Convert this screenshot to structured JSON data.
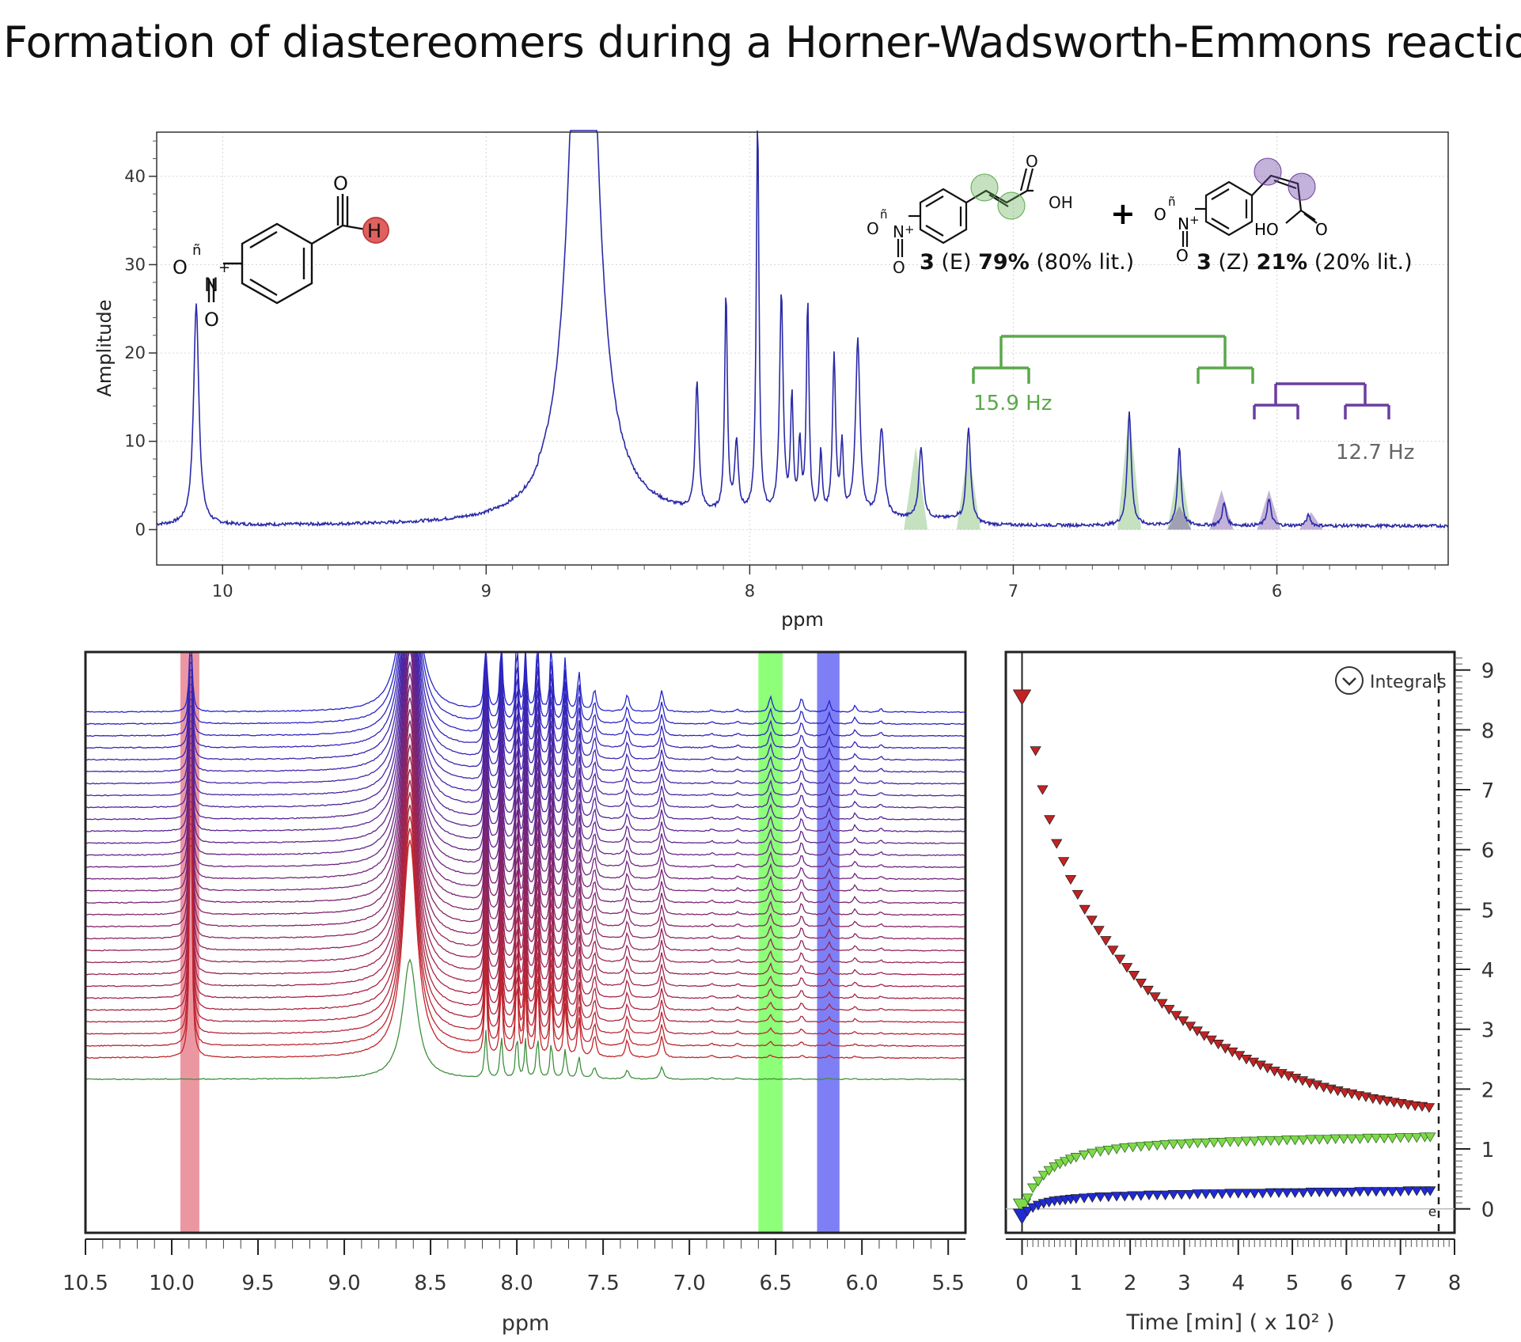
{
  "title": "Formation of diastereomers during a Horner-Wadsworth-Emmons reaction",
  "colors": {
    "spectrum_line": "#2a2aa8",
    "e_isomer": "#5aa84a",
    "z_isomer": "#6a3ea0",
    "aldehyde": "#e06060",
    "stack_top": "#2525c8",
    "stack_bottom": "#c82525",
    "stack_last": "#3f8f3f",
    "band_red": "#e06070",
    "band_green": "#50ff30",
    "band_blue": "#3a3af0",
    "kin_red": "#c42222",
    "kin_green": "#7fd84a",
    "kin_blue": "#1f2ad8"
  },
  "chart_data": [
    {
      "type": "line",
      "id": "top-spectrum",
      "xlabel": "ppm",
      "ylabel": "Amplitude",
      "x_reversed": true,
      "xlim": [
        10.25,
        5.35
      ],
      "ylim": [
        -4,
        45
      ],
      "xticks": [
        "10",
        "9",
        "8",
        "7",
        "6"
      ],
      "yticks": [
        "0",
        "10",
        "20",
        "30",
        "40"
      ],
      "grid": true,
      "baseline": 0.4,
      "peaks": [
        {
          "x": 10.1,
          "y": 25.0,
          "w": 0.012,
          "label": "aldehyde-H"
        },
        {
          "x": 8.63,
          "y": 92.0,
          "w": 0.05
        },
        {
          "x": 8.2,
          "y": 14.5,
          "w": 0.008
        },
        {
          "x": 8.09,
          "y": 25.0,
          "w": 0.006
        },
        {
          "x": 8.05,
          "y": 8.0,
          "w": 0.008
        },
        {
          "x": 7.97,
          "y": 45.0,
          "w": 0.006
        },
        {
          "x": 7.88,
          "y": 25.0,
          "w": 0.008
        },
        {
          "x": 7.84,
          "y": 13.0,
          "w": 0.006
        },
        {
          "x": 7.81,
          "y": 8.0,
          "w": 0.006
        },
        {
          "x": 7.78,
          "y": 24.0,
          "w": 0.006
        },
        {
          "x": 7.73,
          "y": 7.0,
          "w": 0.006
        },
        {
          "x": 7.68,
          "y": 18.0,
          "w": 0.007
        },
        {
          "x": 7.65,
          "y": 8.0,
          "w": 0.006
        },
        {
          "x": 7.59,
          "y": 20.0,
          "w": 0.01
        },
        {
          "x": 7.5,
          "y": 10.0,
          "w": 0.012
        },
        {
          "x": 7.35,
          "y": 8.0,
          "w": 0.01
        },
        {
          "x": 7.17,
          "y": 11.0,
          "w": 0.01
        },
        {
          "x": 6.56,
          "y": 13.0,
          "w": 0.009
        },
        {
          "x": 6.37,
          "y": 9.0,
          "w": 0.008
        },
        {
          "x": 6.2,
          "y": 2.5,
          "w": 0.009
        },
        {
          "x": 6.03,
          "y": 3.0,
          "w": 0.009
        },
        {
          "x": 5.88,
          "y": 1.2,
          "w": 0.009
        }
      ],
      "highlight_e": [
        7.37,
        7.17,
        6.56,
        6.37
      ],
      "highlight_z": [
        6.37,
        6.21,
        6.03,
        5.87
      ],
      "annotations": {
        "coupling_e": "15.9 Hz",
        "coupling_z": "12.7 Hz",
        "e_label": {
          "num": "3",
          "iso": "(E)",
          "pct": "79%",
          "lit": "(80% lit.)"
        },
        "z_label": {
          "num": "3",
          "iso": "(Z)",
          "pct": "21%",
          "lit": "(20% lit.)"
        },
        "plus": "+"
      }
    },
    {
      "type": "line",
      "id": "stacked-spectra",
      "xlabel": "ppm",
      "x_reversed": true,
      "xlim": [
        10.5,
        5.4
      ],
      "xticks": [
        "10.5",
        "10.0",
        "9.5",
        "9.0",
        "8.5",
        "8.0",
        "7.5",
        "7.0",
        "6.5",
        "6.0",
        "5.5"
      ],
      "n_traces": 31,
      "highlight_bands": [
        {
          "from": 9.95,
          "to": 9.84,
          "color": "red"
        },
        {
          "from": 6.6,
          "to": 6.46,
          "color": "green"
        },
        {
          "from": 6.26,
          "to": 6.13,
          "color": "blue"
        }
      ]
    },
    {
      "type": "scatter",
      "id": "integral-kinetics",
      "title": "Integrals",
      "xlabel": "Time [min] ( x 10² )",
      "xlim": [
        -0.3,
        8.0
      ],
      "ylim": [
        -0.4,
        9.3
      ],
      "xticks": [
        "0",
        "1",
        "2",
        "3",
        "4",
        "5",
        "6",
        "7",
        "8"
      ],
      "yticks": [
        "0",
        "1",
        "2",
        "3",
        "4",
        "5",
        "6",
        "7",
        "8",
        "9"
      ],
      "cursor_label": "e",
      "marker": "triangle-down",
      "series": [
        {
          "color": "red",
          "x": [
            0.0,
            0.25,
            0.38,
            0.51,
            0.64,
            0.77,
            0.9,
            1.03,
            1.16,
            1.29,
            1.42,
            1.55,
            1.68,
            1.81,
            1.94,
            2.07,
            2.2,
            2.33,
            2.46,
            2.59,
            2.72,
            2.85,
            2.98,
            3.11,
            3.24,
            3.37,
            3.5,
            3.63,
            3.76,
            3.89,
            4.02,
            4.15,
            4.28,
            4.41,
            4.54,
            4.67,
            4.8,
            4.93,
            5.06,
            5.19,
            5.32,
            5.45,
            5.58,
            5.71,
            5.84,
            5.97,
            6.1,
            6.23,
            6.36,
            6.49,
            6.62,
            6.75,
            6.88,
            7.01,
            7.14,
            7.27,
            7.4,
            7.53
          ],
          "y": [
            8.55,
            7.65,
            7.0,
            6.5,
            6.1,
            5.8,
            5.5,
            5.25,
            5.0,
            4.82,
            4.65,
            4.48,
            4.32,
            4.17,
            4.03,
            3.9,
            3.77,
            3.65,
            3.54,
            3.43,
            3.33,
            3.23,
            3.14,
            3.05,
            2.97,
            2.89,
            2.82,
            2.75,
            2.68,
            2.62,
            2.56,
            2.5,
            2.45,
            2.4,
            2.35,
            2.3,
            2.26,
            2.22,
            2.18,
            2.14,
            2.1,
            2.07,
            2.03,
            2.0,
            1.97,
            1.94,
            1.92,
            1.89,
            1.87,
            1.84,
            1.82,
            1.8,
            1.78,
            1.76,
            1.74,
            1.72,
            1.71,
            1.69
          ]
        },
        {
          "color": "green",
          "x": [
            0.0,
            0.1,
            0.2,
            0.3,
            0.4,
            0.5,
            0.6,
            0.7,
            0.8,
            0.9,
            1.0,
            1.15,
            1.3,
            1.45,
            1.6,
            1.75,
            1.9,
            2.05,
            2.2,
            2.35,
            2.5,
            2.65,
            2.8,
            2.95,
            3.1,
            3.25,
            3.4,
            3.55,
            3.7,
            3.85,
            4.0,
            4.15,
            4.3,
            4.45,
            4.6,
            4.75,
            4.9,
            5.05,
            5.2,
            5.35,
            5.5,
            5.65,
            5.8,
            5.95,
            6.1,
            6.25,
            6.4,
            6.55,
            6.7,
            6.85,
            7.0,
            7.15,
            7.3,
            7.45,
            7.55
          ],
          "y": [
            0.05,
            0.18,
            0.35,
            0.46,
            0.56,
            0.64,
            0.7,
            0.75,
            0.79,
            0.83,
            0.86,
            0.9,
            0.93,
            0.96,
            0.98,
            1.0,
            1.02,
            1.03,
            1.04,
            1.05,
            1.06,
            1.07,
            1.08,
            1.08,
            1.09,
            1.1,
            1.1,
            1.11,
            1.11,
            1.12,
            1.12,
            1.13,
            1.13,
            1.14,
            1.14,
            1.14,
            1.15,
            1.15,
            1.15,
            1.16,
            1.16,
            1.16,
            1.17,
            1.17,
            1.17,
            1.17,
            1.18,
            1.18,
            1.18,
            1.18,
            1.19,
            1.19,
            1.19,
            1.2,
            1.2
          ]
        },
        {
          "color": "blue",
          "x": [
            0.0,
            0.1,
            0.2,
            0.3,
            0.4,
            0.5,
            0.6,
            0.7,
            0.8,
            0.9,
            1.0,
            1.15,
            1.3,
            1.45,
            1.6,
            1.75,
            1.9,
            2.05,
            2.2,
            2.35,
            2.5,
            2.65,
            2.8,
            2.95,
            3.1,
            3.25,
            3.4,
            3.55,
            3.7,
            3.85,
            4.0,
            4.15,
            4.3,
            4.45,
            4.6,
            4.75,
            4.9,
            5.05,
            5.2,
            5.35,
            5.5,
            5.65,
            5.8,
            5.95,
            6.1,
            6.25,
            6.4,
            6.55,
            6.7,
            6.85,
            7.0,
            7.15,
            7.3,
            7.45,
            7.55
          ],
          "y": [
            -0.12,
            -0.04,
            0.02,
            0.06,
            0.09,
            0.11,
            0.13,
            0.14,
            0.15,
            0.16,
            0.17,
            0.18,
            0.19,
            0.2,
            0.2,
            0.21,
            0.21,
            0.22,
            0.22,
            0.23,
            0.23,
            0.23,
            0.24,
            0.24,
            0.24,
            0.25,
            0.25,
            0.25,
            0.25,
            0.26,
            0.26,
            0.26,
            0.26,
            0.26,
            0.27,
            0.27,
            0.27,
            0.27,
            0.27,
            0.28,
            0.28,
            0.28,
            0.28,
            0.28,
            0.28,
            0.29,
            0.29,
            0.29,
            0.29,
            0.29,
            0.29,
            0.3,
            0.3,
            0.3,
            0.3
          ]
        }
      ]
    }
  ]
}
